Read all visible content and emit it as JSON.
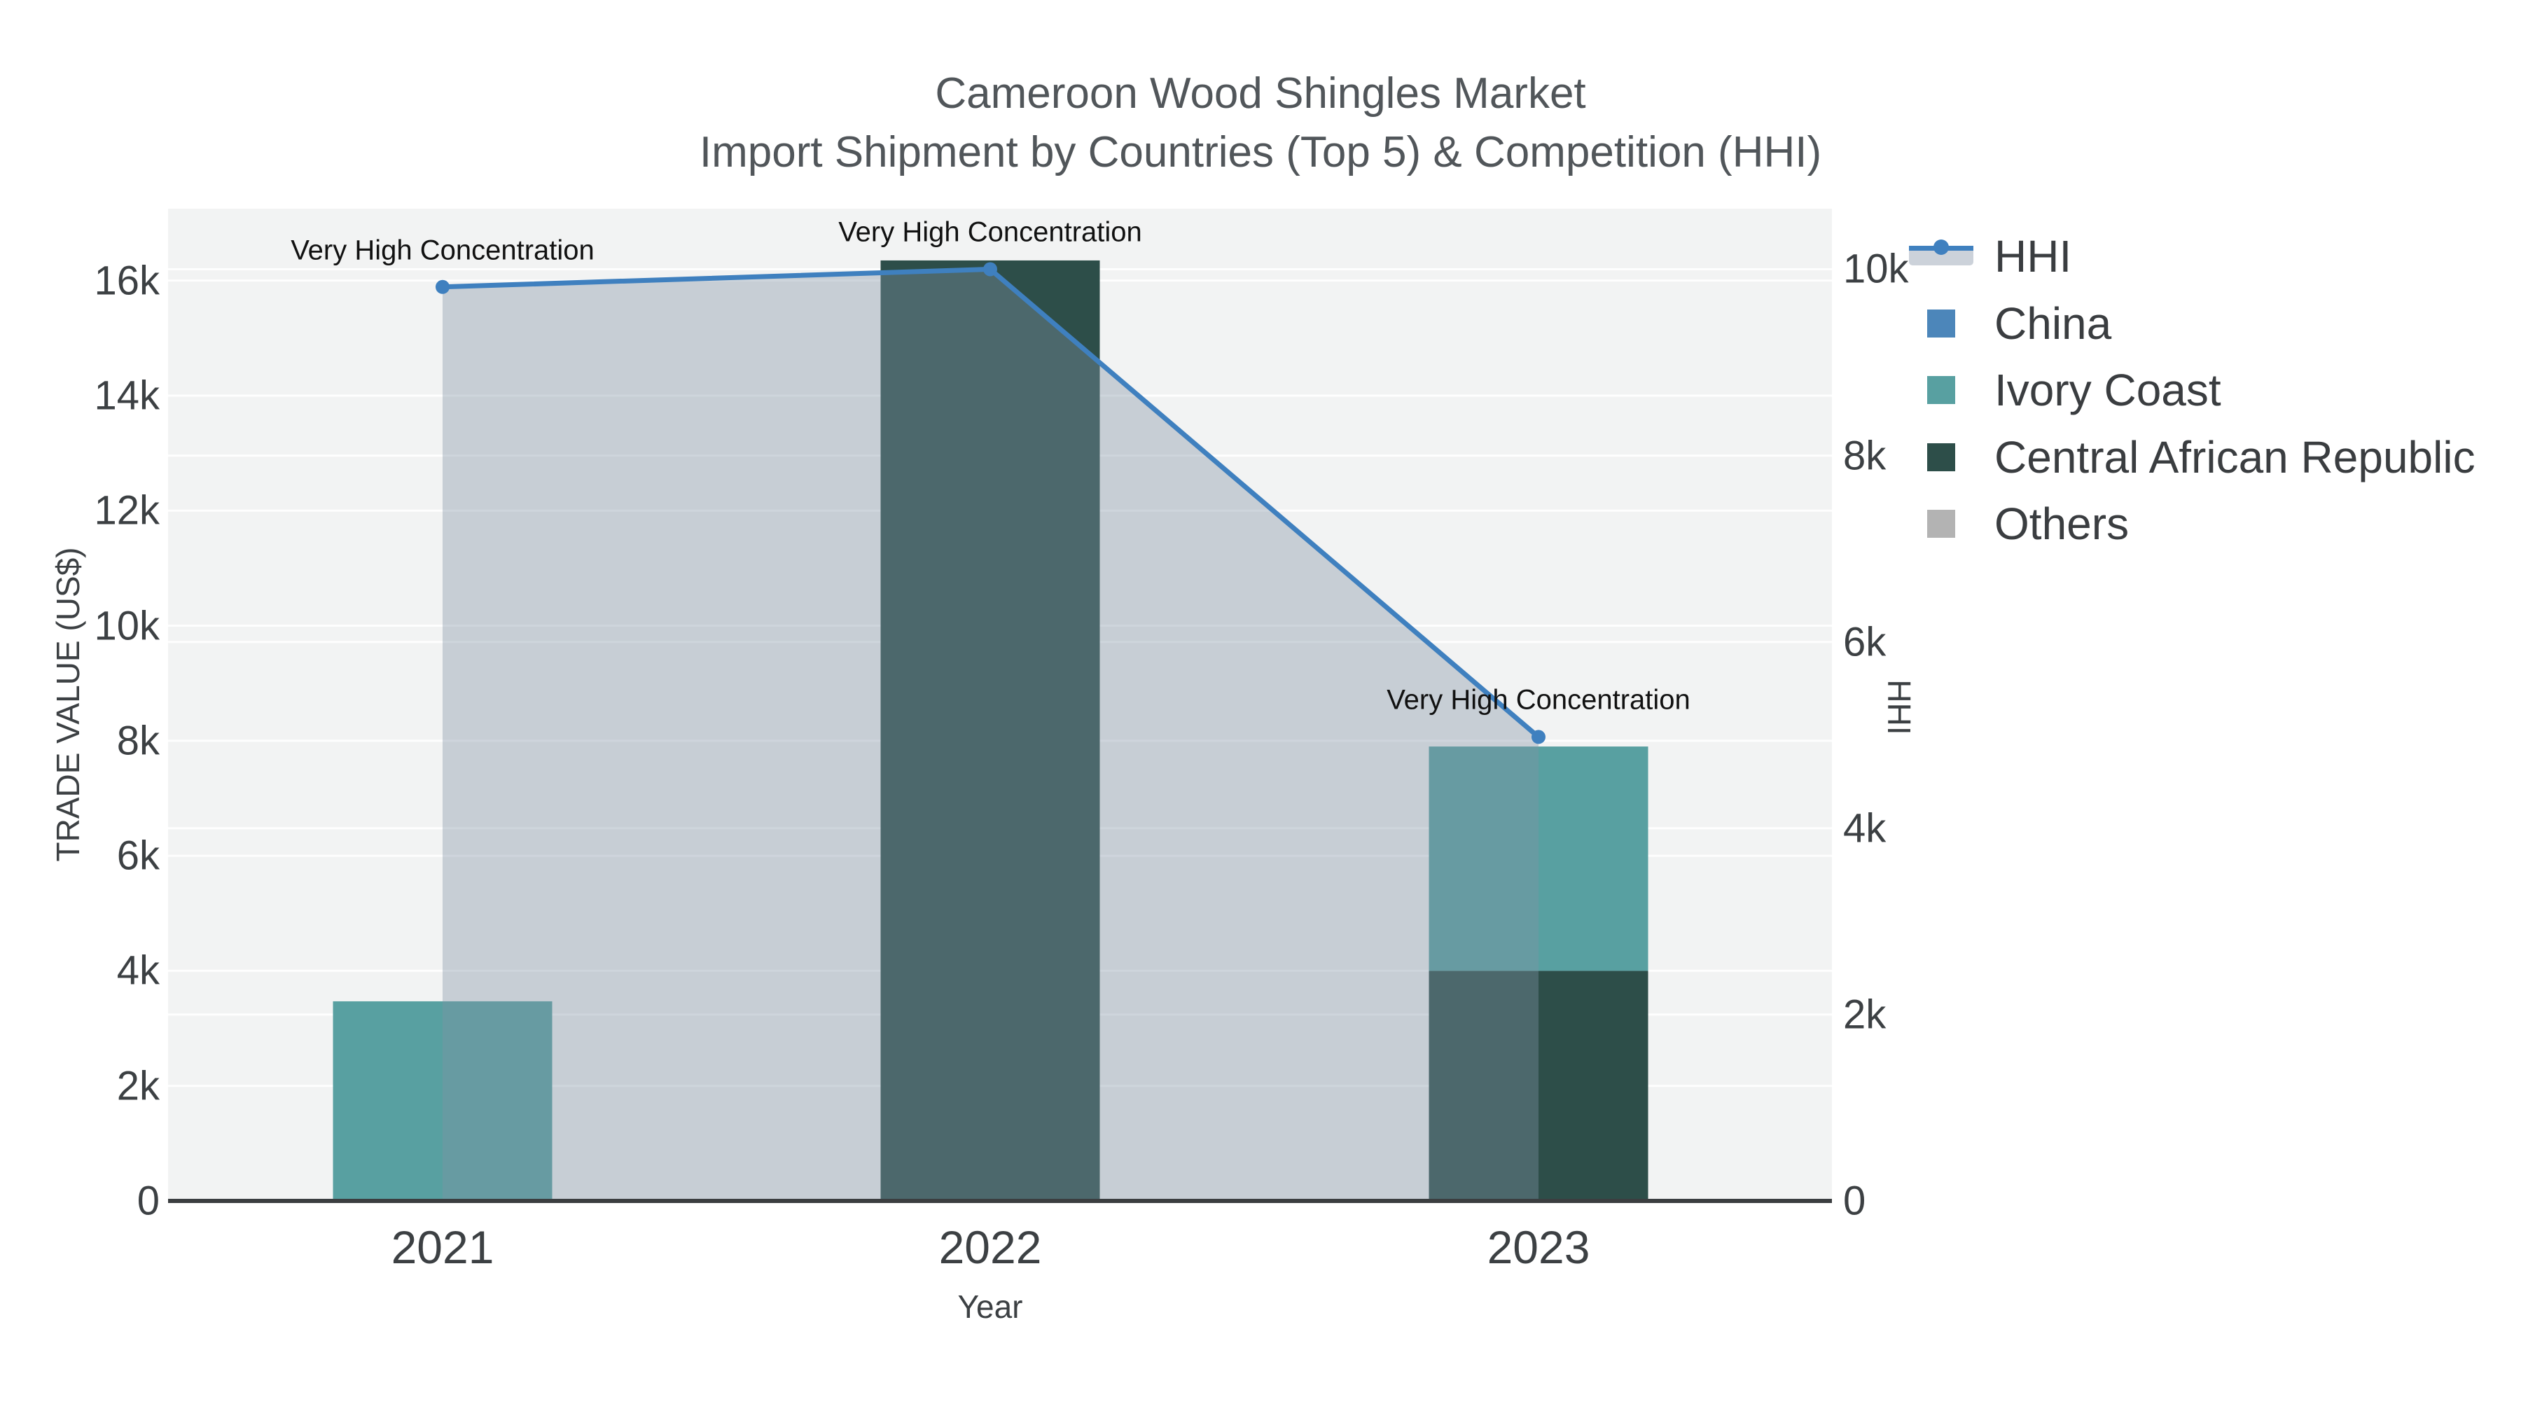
{
  "title": {
    "line1": "Cameroon Wood Shingles Market",
    "line2": "Import Shipment by Countries (Top 5) & Competition (HHI)"
  },
  "axes": {
    "x": {
      "title": "Year",
      "ticks": [
        "2021",
        "2022",
        "2023"
      ]
    },
    "left": {
      "title": "TRADE VALUE (US$)",
      "ticks": [
        {
          "label": "0",
          "value": 0
        },
        {
          "label": "2k",
          "value": 2000
        },
        {
          "label": "4k",
          "value": 4000
        },
        {
          "label": "6k",
          "value": 6000
        },
        {
          "label": "8k",
          "value": 8000
        },
        {
          "label": "10k",
          "value": 10000
        },
        {
          "label": "12k",
          "value": 12000
        },
        {
          "label": "14k",
          "value": 14000
        },
        {
          "label": "16k",
          "value": 16000
        }
      ]
    },
    "right": {
      "title": "HHI",
      "ticks": [
        {
          "label": "0",
          "value": 0
        },
        {
          "label": "2k",
          "value": 2000
        },
        {
          "label": "4k",
          "value": 4000
        },
        {
          "label": "6k",
          "value": 6000
        },
        {
          "label": "8k",
          "value": 8000
        },
        {
          "label": "10k",
          "value": 10000
        }
      ]
    }
  },
  "legend": {
    "items": [
      {
        "label": "HHI",
        "type": "line",
        "color": "#3f80bf",
        "band_color": "#ccd2da"
      },
      {
        "label": "China",
        "type": "bar",
        "color": "#4c86ba"
      },
      {
        "label": "Ivory Coast",
        "type": "bar",
        "color": "#58a0a1"
      },
      {
        "label": "Central African Republic",
        "type": "bar",
        "color": "#2d4e49"
      },
      {
        "label": "Others",
        "type": "bar",
        "color": "#b3b3b3"
      }
    ]
  },
  "annotations": [
    {
      "text": "Very High Concentration",
      "year": "2021"
    },
    {
      "text": "Very High Concentration",
      "year": "2022"
    },
    {
      "text": "Very High Concentration",
      "year": "2023"
    }
  ],
  "colors": {
    "plot_bg": "#f2f3f3",
    "grid": "rgba(255,255,255,0.9)",
    "axis_line": "#3b3e40",
    "hhi_line": "#3f80bf",
    "hhi_fill": "rgba(130,146,166,0.38)"
  },
  "chart_data": {
    "type": "bar+line",
    "title": "Cameroon Wood Shingles Market — Import Shipment by Countries (Top 5) & Competition (HHI)",
    "x": [
      "2021",
      "2022",
      "2023"
    ],
    "bar_mode": "stack",
    "stack_order": [
      "China",
      "Central African Republic",
      "Ivory Coast",
      "Others"
    ],
    "xlabel": "Year",
    "ylabel_left": "TRADE VALUE (US$)",
    "ylabel_right": "HHI",
    "ylim_left": [
      0,
      17250
    ],
    "ylim_right": [
      0,
      10650
    ],
    "grid": true,
    "legend_position": "right",
    "series": [
      {
        "name": "China",
        "type": "bar",
        "color": "#4c86ba",
        "values": [
          0,
          0,
          0
        ]
      },
      {
        "name": "Ivory Coast",
        "type": "bar",
        "color": "#58a0a1",
        "values": [
          3470,
          0,
          3900
        ]
      },
      {
        "name": "Central African Republic",
        "type": "bar",
        "color": "#2d4e49",
        "values": [
          0,
          16350,
          4000
        ]
      },
      {
        "name": "Others",
        "type": "bar",
        "color": "#b3b3b3",
        "values": [
          0,
          0,
          0
        ]
      },
      {
        "name": "HHI",
        "type": "line",
        "axis": "right",
        "color": "#3f80bf",
        "fill": "tozeroy",
        "values": [
          9810,
          10000,
          4980
        ],
        "annotations": [
          "Very High Concentration",
          "Very High Concentration",
          "Very High Concentration"
        ]
      }
    ]
  }
}
